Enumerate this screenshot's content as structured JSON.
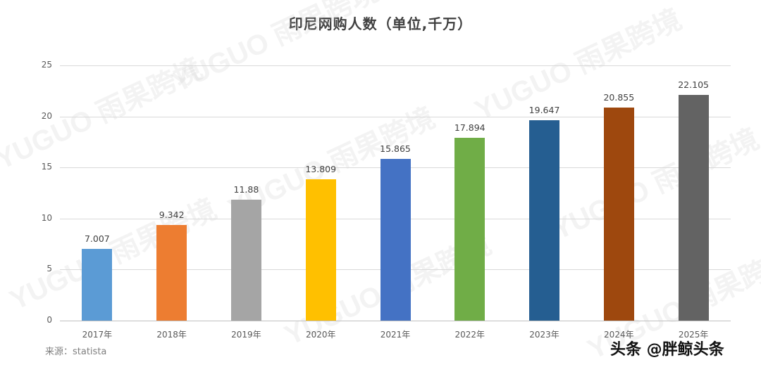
{
  "chart_data": {
    "type": "bar",
    "title": "印尼网购人数（单位,千万）",
    "categories": [
      "2017年",
      "2018年",
      "2019年",
      "2020年",
      "2021年",
      "2022年",
      "2023年",
      "2024年",
      "2025年"
    ],
    "values": [
      7.007,
      9.342,
      11.88,
      13.809,
      15.865,
      17.894,
      19.647,
      20.855,
      22.105
    ],
    "value_labels": [
      "7.007",
      "9.342",
      "11.88",
      "13.809",
      "15.865",
      "17.894",
      "19.647",
      "20.855",
      "22.105"
    ],
    "colors": [
      "#5b9bd5",
      "#ed7d31",
      "#a5a5a5",
      "#ffc000",
      "#4472c4",
      "#70ad47",
      "#255e91",
      "#9e480e",
      "#636363"
    ],
    "xlabel": "",
    "ylabel": "",
    "ylim": [
      0,
      25
    ],
    "yticks": [
      "0",
      "5",
      "10",
      "15",
      "20",
      "25"
    ],
    "grid": true,
    "legend": "none"
  },
  "footer": {
    "source": "来源：statista",
    "credit": "头条 @胖鲸头条"
  },
  "watermark": {
    "text": "YUGUO 雨果跨境"
  }
}
